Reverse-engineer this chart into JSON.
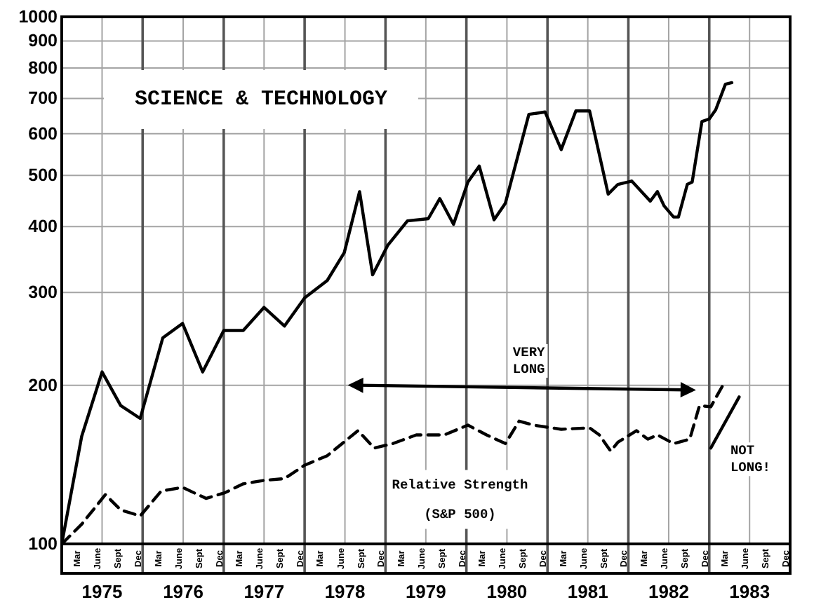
{
  "chart_data": {
    "type": "line",
    "title": "SCIENCE & TECHNOLOGY",
    "log": true,
    "grid": true,
    "xlim": [
      "1975-01-01",
      "1984-01-01"
    ],
    "xticks": [
      {
        "value": "1975-07-02",
        "label": "1975"
      },
      {
        "value": "1976-01-01",
        "label": null
      },
      {
        "value": "1976-07-02",
        "label": "1976"
      },
      {
        "value": "1977-01-01",
        "label": null
      },
      {
        "value": "1977-07-02",
        "label": "1977"
      },
      {
        "value": "1978-01-01",
        "label": null
      },
      {
        "value": "1978-07-02",
        "label": "1978"
      },
      {
        "value": "1979-01-01",
        "label": null
      },
      {
        "value": "1979-07-02",
        "label": "1979"
      },
      {
        "value": "1980-01-01",
        "label": null
      },
      {
        "value": "1980-07-02",
        "label": "1980"
      },
      {
        "value": "1981-01-01",
        "label": null
      },
      {
        "value": "1981-07-02",
        "label": "1981"
      },
      {
        "value": "1982-01-01",
        "label": null
      },
      {
        "value": "1982-07-02",
        "label": "1982"
      },
      {
        "value": "1983-01-01",
        "label": null
      },
      {
        "value": "1983-07-02",
        "label": "1983"
      }
    ],
    "x2lim": [
      "1975-01-01",
      "1984-01-01"
    ],
    "x2ticks": [
      {
        "value": "1975-03-16",
        "label": "Mar"
      },
      {
        "value": "1975-06-16",
        "label": "June"
      },
      {
        "value": "1975-09-16",
        "label": "Sept"
      },
      {
        "value": "1975-12-16",
        "label": "Dec"
      },
      {
        "value": "1976-03-16",
        "label": "Mar"
      },
      {
        "value": "1976-06-16",
        "label": "June"
      },
      {
        "value": "1976-09-16",
        "label": "Sept"
      },
      {
        "value": "1976-12-16",
        "label": "Dec"
      },
      {
        "value": "1977-03-16",
        "label": "Mar"
      },
      {
        "value": "1977-06-16",
        "label": "June"
      },
      {
        "value": "1977-09-16",
        "label": "Sept"
      },
      {
        "value": "1977-12-16",
        "label": "Dec"
      },
      {
        "value": "1978-03-16",
        "label": "Mar"
      },
      {
        "value": "1978-06-16",
        "label": "June"
      },
      {
        "value": "1978-09-16",
        "label": "Sept"
      },
      {
        "value": "1978-12-16",
        "label": "Dec"
      },
      {
        "value": "1979-03-16",
        "label": "Mar"
      },
      {
        "value": "1979-06-16",
        "label": "June"
      },
      {
        "value": "1979-09-16",
        "label": "Sept"
      },
      {
        "value": "1979-12-16",
        "label": "Dec"
      },
      {
        "value": "1980-03-16",
        "label": "Mar"
      },
      {
        "value": "1980-06-16",
        "label": "June"
      },
      {
        "value": "1980-09-16",
        "label": "Sept"
      },
      {
        "value": "1980-12-16",
        "label": "Dec"
      },
      {
        "value": "1981-03-16",
        "label": "Mar"
      },
      {
        "value": "1981-06-16",
        "label": "June"
      },
      {
        "value": "1981-09-16",
        "label": "Sept"
      },
      {
        "value": "1981-12-16",
        "label": "Dec"
      },
      {
        "value": "1982-03-16",
        "label": "Mar"
      },
      {
        "value": "1982-06-16",
        "label": "June"
      },
      {
        "value": "1982-09-16",
        "label": "Sept"
      },
      {
        "value": "1982-12-16",
        "label": "Dec"
      },
      {
        "value": "1983-03-16",
        "label": "Mar"
      },
      {
        "value": "1983-06-16",
        "label": "June"
      },
      {
        "value": "1983-09-16",
        "label": "Sept"
      },
      {
        "value": "1983-12-16",
        "label": "Dec"
      }
    ],
    "ylim": [
      100,
      1000
    ],
    "yticks": [
      100,
      200,
      300,
      400,
      500,
      600,
      700,
      800,
      900,
      1000
    ],
    "series": [
      {
        "color": "#000000",
        "line_style": "solid",
        "x": [
          "1975-01-01",
          "1975-04-01",
          "1975-07-02",
          "1975-09-24",
          "1975-12-21",
          "1976-04-01",
          "1976-06-29",
          "1976-09-28",
          "1977-01-01",
          "1977-03-30",
          "1977-07-02",
          "1977-10-02",
          "1978-01-01",
          "1978-04-13",
          "1978-06-29",
          "1978-09-06",
          "1978-11-04",
          "1979-01-12",
          "1979-04-10",
          "1979-07-13",
          "1979-09-03",
          "1979-11-04",
          "1980-01-08",
          "1980-02-28",
          "1980-05-05",
          "1980-06-25",
          "1980-10-09",
          "1980-12-21",
          "1981-03-04",
          "1981-05-09",
          "1981-07-10",
          "1981-10-02",
          "1981-11-15",
          "1982-01-16",
          "1982-04-10",
          "1982-05-12",
          "1982-06-11",
          "1982-07-24",
          "1982-08-15",
          "1982-09-24",
          "1982-10-16",
          "1982-11-29",
          "1983-01-01",
          "1983-01-30",
          "1983-03-15",
          "1983-04-13"
        ],
        "values": [
          100,
          160,
          212,
          183,
          173,
          246,
          262,
          212,
          254,
          254,
          281,
          259,
          293,
          316,
          357,
          466,
          324,
          369,
          410,
          414,
          452,
          404,
          486,
          521,
          412,
          443,
          653,
          660,
          560,
          663,
          663,
          461,
          481,
          488,
          447,
          466,
          438,
          417,
          417,
          481,
          486,
          633,
          640,
          666,
          745,
          750
        ]
      },
      {
        "name": "Relative Strength (S&P 500)",
        "color": "#000000",
        "line_style": "dashed",
        "x": [
          "1975-01-01",
          "1975-04-01",
          "1975-07-17",
          "1975-09-24",
          "1975-12-21",
          "1976-03-25",
          "1976-06-29",
          "1976-10-13",
          "1977-01-05",
          "1977-03-30",
          "1977-07-02",
          "1977-10-02",
          "1978-01-01",
          "1978-04-13",
          "1978-08-30",
          "1978-11-11",
          "1979-02-03",
          "1979-05-20",
          "1979-09-24",
          "1980-01-08",
          "1980-04-01",
          "1980-06-25",
          "1980-08-26",
          "1980-10-31",
          "1981-03-04",
          "1981-07-10",
          "1981-08-23",
          "1981-10-13",
          "1981-11-15",
          "1982-02-07",
          "1982-03-30",
          "1982-05-12",
          "1982-07-24",
          "1982-10-05",
          "1982-11-18",
          "1983-01-08",
          "1983-03-15"
        ],
        "values": [
          100,
          109,
          124,
          116,
          113,
          126,
          128,
          122,
          125,
          130,
          132,
          133,
          141,
          147,
          164,
          152,
          155,
          161,
          161,
          168,
          161,
          155,
          171,
          168,
          165,
          166,
          161,
          150,
          156,
          164,
          158,
          161,
          155,
          158,
          183,
          182,
          204
        ]
      },
      {
        "color": "#000000",
        "line_style": "solid",
        "x": [
          "1983-01-08",
          "1983-05-16"
        ],
        "values": [
          152,
          190
        ]
      },
      {
        "color": "#000000",
        "line_style": "solid",
        "marker": "triangle",
        "x": [
          "1978-08-30",
          "1982-09-17"
        ],
        "values": [
          200,
          196
        ]
      }
    ],
    "annotations": [
      {
        "text": "VERY LONG",
        "x": "1980-10-09",
        "y": 198
      },
      {
        "text": "NOT LONG!",
        "x": "1983-01-08",
        "y": 152
      }
    ]
  }
}
